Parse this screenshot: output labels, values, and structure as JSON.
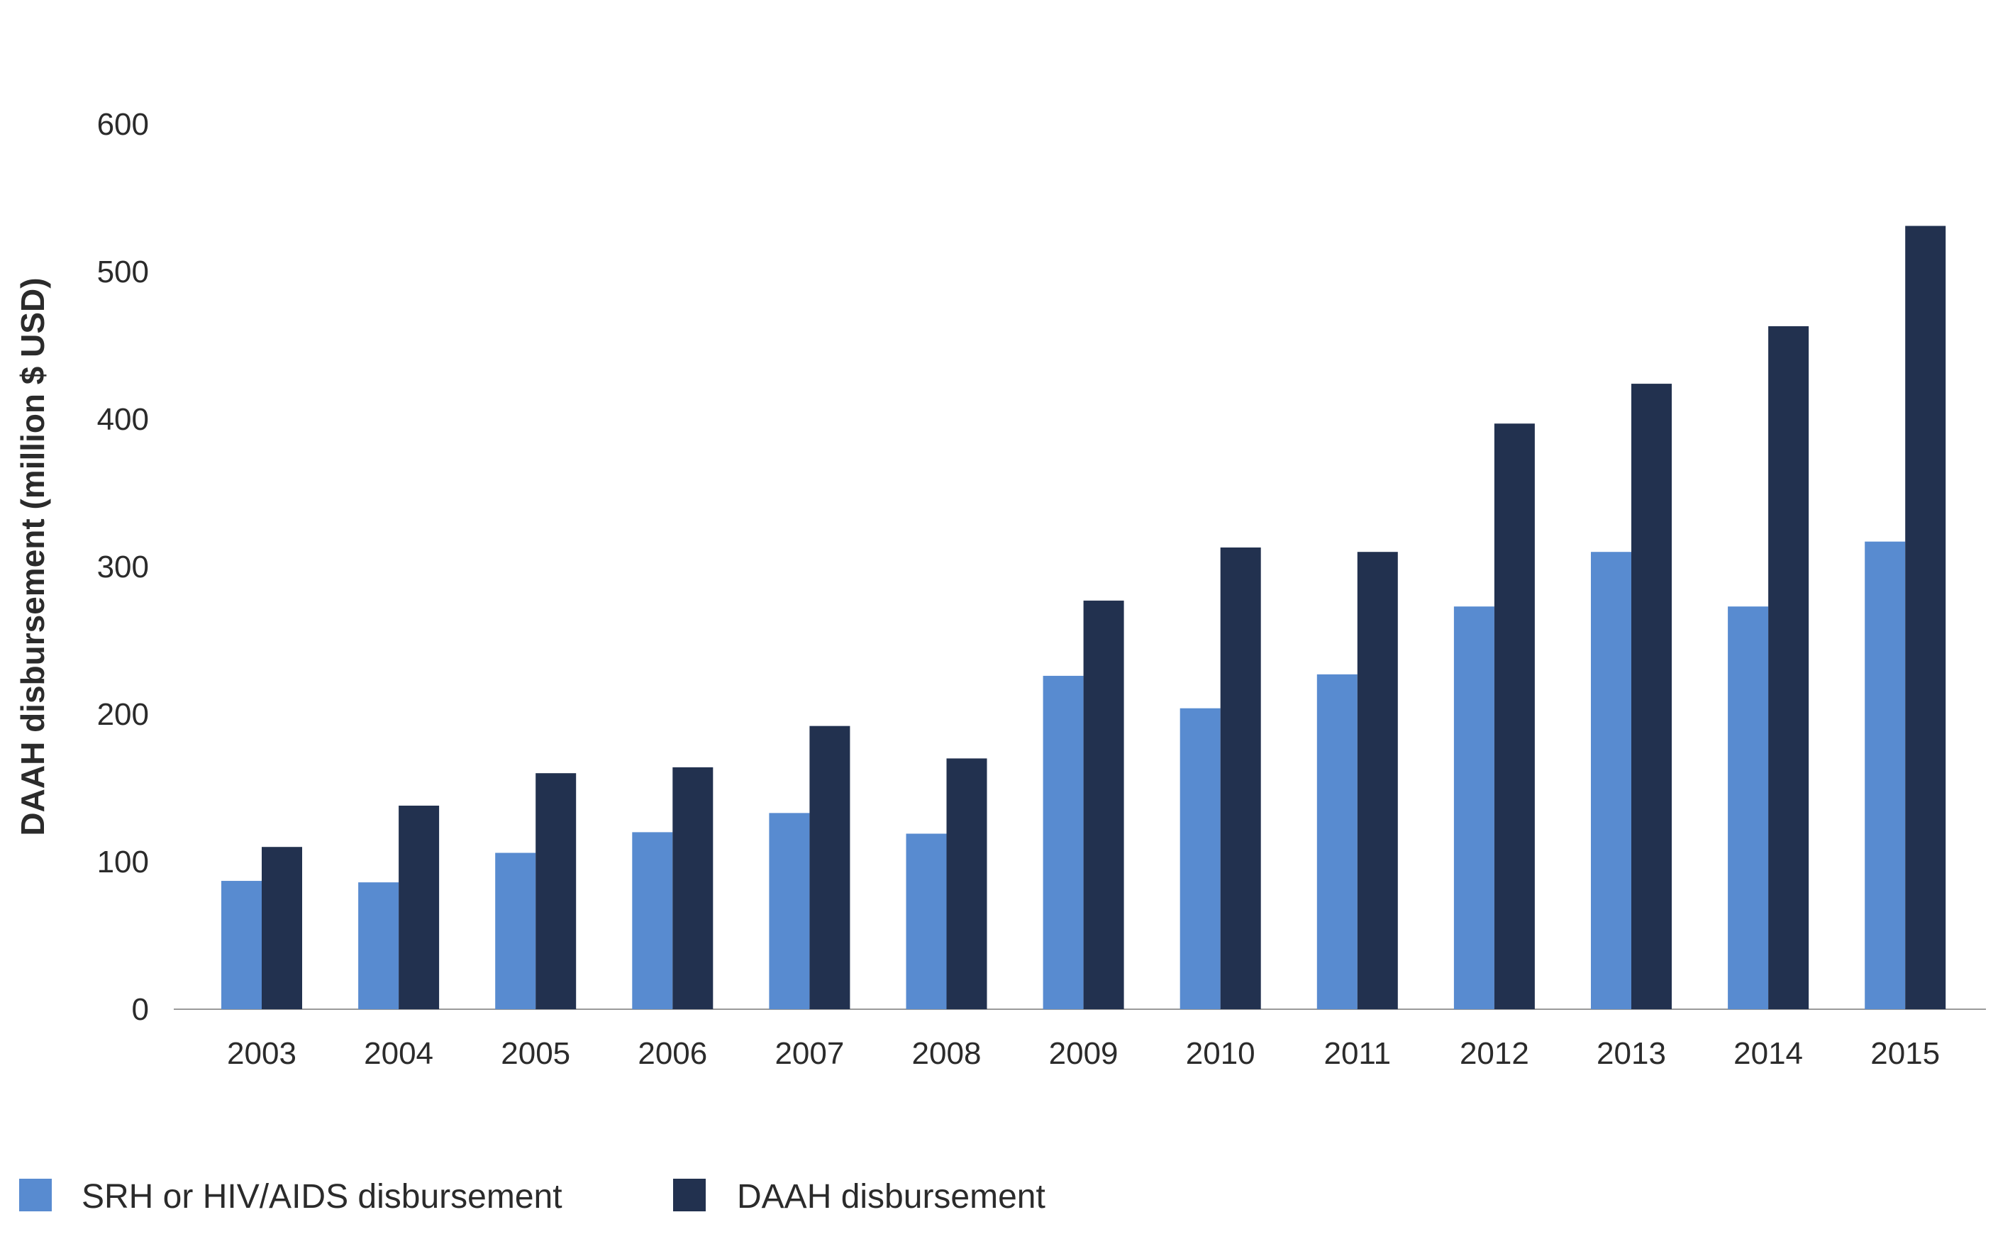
{
  "chart_data": {
    "type": "bar",
    "title": "",
    "xlabel": "",
    "ylabel": "DAAH disbursement (million $ USD)",
    "categories": [
      "2003",
      "2004",
      "2005",
      "2006",
      "2007",
      "2008",
      "2009",
      "2010",
      "2011",
      "2012",
      "2013",
      "2014",
      "2015"
    ],
    "series": [
      {
        "name": "SRH or HIV/AIDS disbursement",
        "color": "#588bd0",
        "values": [
          87,
          86,
          106,
          120,
          133,
          119,
          226,
          204,
          227,
          273,
          310,
          273,
          317
        ]
      },
      {
        "name": "DAAH disbursement",
        "color": "#22314f",
        "values": [
          110,
          138,
          160,
          164,
          192,
          170,
          277,
          313,
          310,
          397,
          424,
          463,
          531
        ]
      }
    ],
    "ylim": [
      0,
      600
    ],
    "yticks": [
      0,
      100,
      200,
      300,
      400,
      500,
      600
    ],
    "grid": false,
    "legend": "bottom-left"
  }
}
